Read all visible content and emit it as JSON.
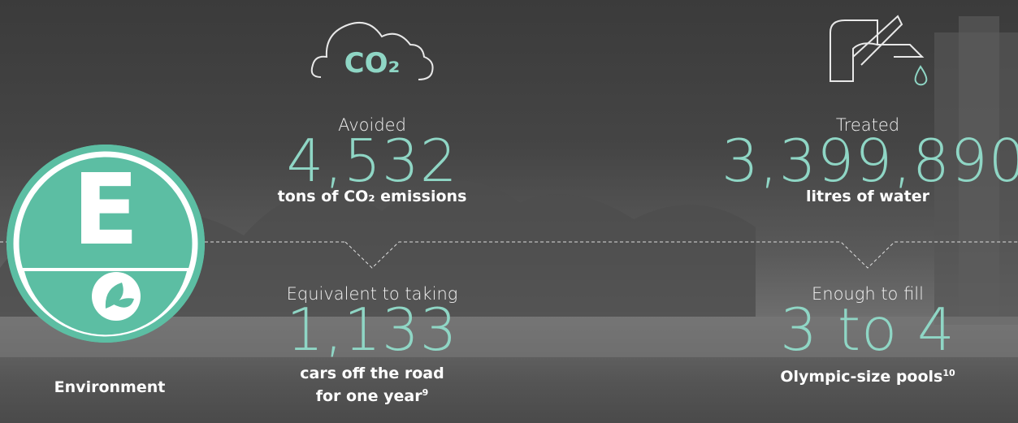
{
  "badge": {
    "letter": "E",
    "label": "Environment"
  },
  "stats": [
    {
      "icon_text": "CO₂",
      "label": "Avoided",
      "value": "4,532",
      "unit": "tons of CO₂ emissions",
      "equivalent": {
        "label": "Equivalent to taking",
        "value": "1,133",
        "unit_lines": [
          "cars off the road",
          "for one year"
        ],
        "footnote": "9"
      }
    },
    {
      "label": "Treated",
      "value": "3,399,890",
      "unit": "litres of water",
      "equivalent": {
        "label": "Enough to fill",
        "value": "3 to 4",
        "unit_lines": [
          "Olympic-size pools"
        ],
        "footnote": "10"
      }
    }
  ]
}
